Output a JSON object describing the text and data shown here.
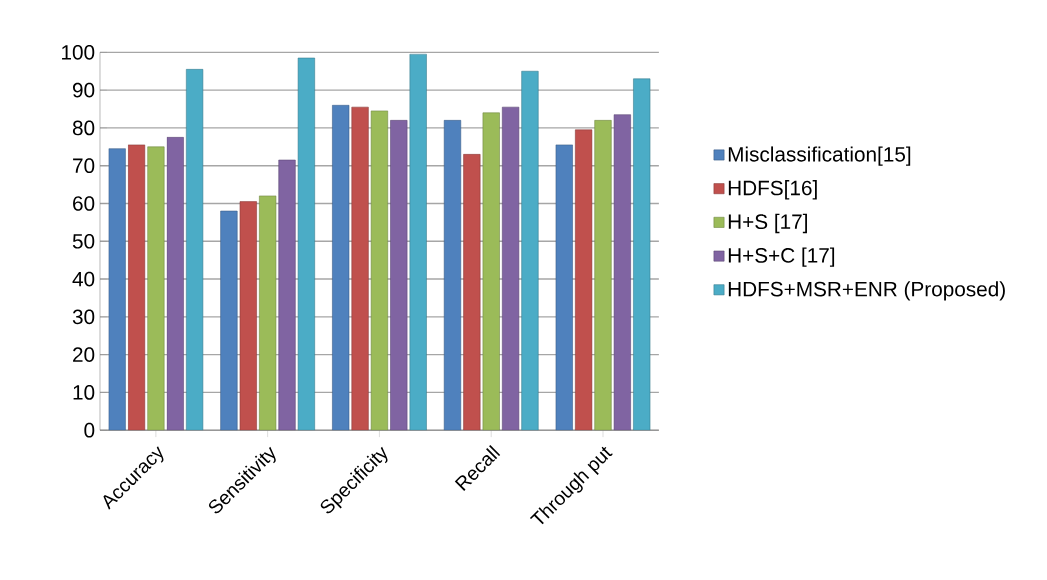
{
  "chart_data": {
    "type": "bar",
    "categories": [
      "Accuracy",
      "Sensitivity",
      "Specificity",
      "Recall",
      "Through put"
    ],
    "series": [
      {
        "name": "Misclassification[15]",
        "color": "#4f81bd",
        "values": [
          74.5,
          58,
          86,
          82,
          75.5
        ]
      },
      {
        "name": "HDFS[16]",
        "color": "#c0504d",
        "values": [
          75.5,
          60.5,
          85.5,
          73,
          79.5
        ]
      },
      {
        "name": "H+S [17]",
        "color": "#9bbb59",
        "values": [
          75,
          62,
          84.5,
          84,
          82
        ]
      },
      {
        "name": "H+S+C [17]",
        "color": "#8064a2",
        "values": [
          77.5,
          71.5,
          82,
          85.5,
          83.5
        ]
      },
      {
        "name": "HDFS+MSR+ENR (Proposed)",
        "color": "#4bacc6",
        "values": [
          95.5,
          98.5,
          99.5,
          95,
          93
        ]
      }
    ],
    "ylim": [
      0,
      100
    ],
    "yticks": [
      0,
      10,
      20,
      30,
      40,
      50,
      60,
      70,
      80,
      90,
      100
    ],
    "grid": "y",
    "legend": "right"
  }
}
